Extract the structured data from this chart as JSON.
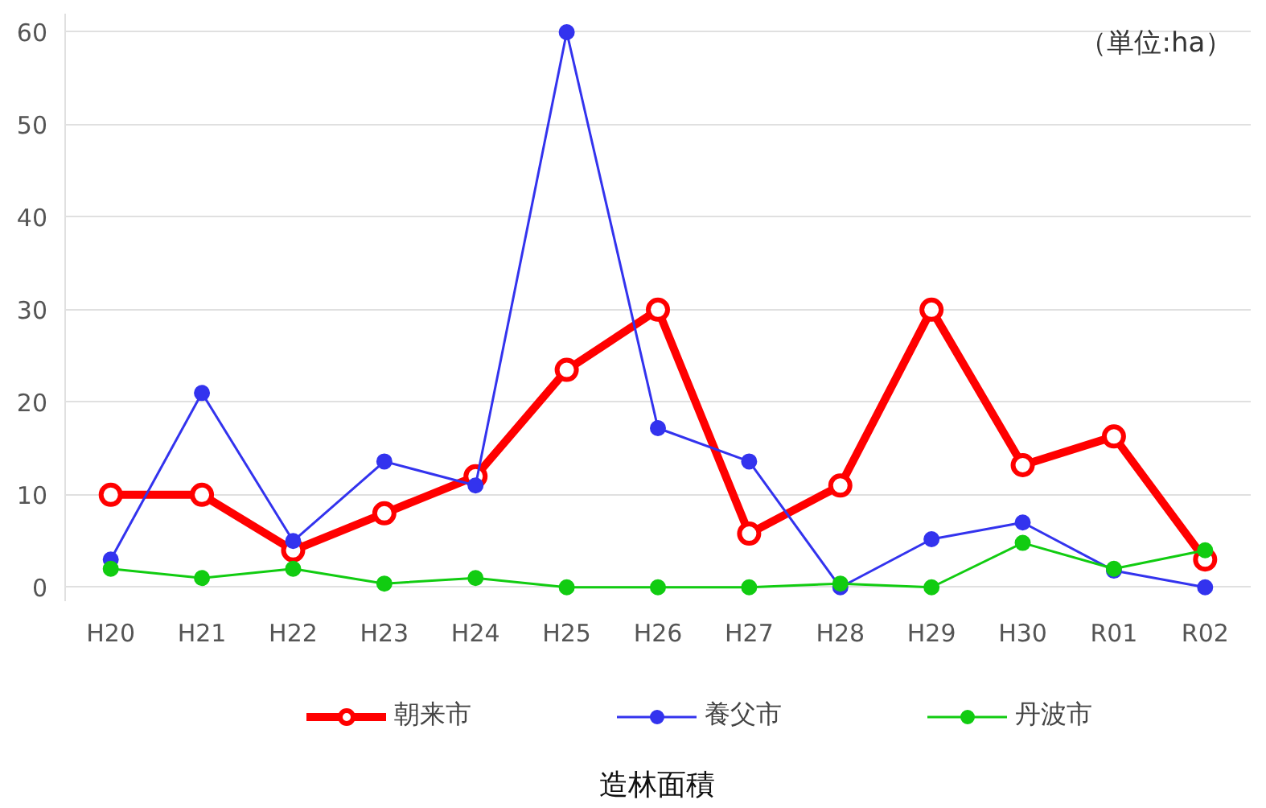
{
  "chart_data": {
    "type": "line",
    "title": "造林面積",
    "categories": [
      "H20",
      "H21",
      "H22",
      "H23",
      "H24",
      "H25",
      "H26",
      "H27",
      "H28",
      "H29",
      "H30",
      "R01",
      "R02"
    ],
    "series": [
      {
        "name": "朝来市",
        "color": "#ff0000",
        "values": [
          10,
          10,
          4,
          8,
          12,
          23.5,
          30,
          5.8,
          11,
          30,
          13.2,
          16.3,
          3
        ]
      },
      {
        "name": "養父市",
        "color": "#3333ee",
        "values": [
          3,
          21,
          5,
          13.6,
          11,
          60,
          17.2,
          13.6,
          0,
          5.2,
          7,
          1.8,
          0
        ]
      },
      {
        "name": "丹波市",
        "color": "#11cc11",
        "values": [
          2,
          1,
          2,
          0.4,
          1,
          0,
          0,
          0,
          0.4,
          0,
          4.8,
          2,
          4
        ]
      }
    ],
    "ylim": [
      -1.5,
      62
    ],
    "yticks": [
      0,
      10,
      20,
      30,
      40,
      50,
      60
    ],
    "grid": "y",
    "legend": "bottom",
    "marker": "circle",
    "annotations": [
      "（単位:ha）"
    ]
  }
}
